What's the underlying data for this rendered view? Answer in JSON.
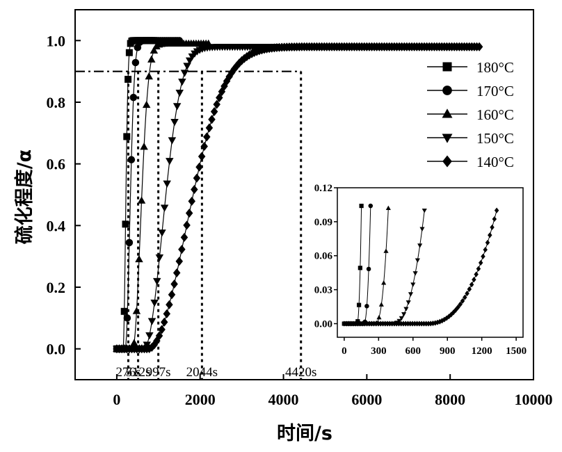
{
  "chart_data": [
    {
      "type": "line",
      "xlabel": "时间/s",
      "ylabel": "硫化程度/α",
      "xlim": [
        -1000,
        10000
      ],
      "ylim": [
        -0.1,
        1.1
      ],
      "xticks": [
        0,
        2000,
        4000,
        6000,
        8000,
        10000
      ],
      "xtick_labels": [
        "0",
        "2000",
        "4000",
        "6000",
        "8000",
        "10000"
      ],
      "yticks": [
        0.0,
        0.2,
        0.4,
        0.6,
        0.8,
        1.0
      ],
      "ytick_labels": [
        "0.0",
        "0.2",
        "0.4",
        "0.6",
        "0.8",
        "1.0"
      ],
      "legend_position": "upper-right",
      "reference_line": {
        "y": 0.9,
        "style": "dash-dot"
      },
      "annotations": [
        {
          "text": "276s",
          "x": 276
        },
        {
          "text": "512s",
          "x": 512
        },
        {
          "text": "997s",
          "x": 997
        },
        {
          "text": "2044s",
          "x": 2044
        },
        {
          "text": "4420s",
          "x": 4420
        }
      ],
      "series": [
        {
          "name": "180°C",
          "marker": "square",
          "k": 0.012,
          "t0": 150,
          "t_end": 900,
          "x": [
            0,
            150,
            200,
            276,
            400,
            600,
            900
          ],
          "y": [
            0.0,
            0.0,
            0.45,
            0.9,
            0.99,
            1.0,
            1.0
          ]
        },
        {
          "name": "170°C",
          "marker": "circle",
          "k": 0.0065,
          "t0": 200,
          "t_end": 1500,
          "x": [
            0,
            200,
            350,
            512,
            800,
            1200,
            1500
          ],
          "y": [
            0.0,
            0.0,
            0.62,
            0.9,
            0.99,
            1.0,
            1.0
          ]
        },
        {
          "name": "160°C",
          "marker": "triangle-up",
          "k": 0.0038,
          "t0": 380,
          "t_end": 2200,
          "x": [
            0,
            380,
            600,
            997,
            1500,
            2200
          ],
          "y": [
            0.0,
            0.0,
            0.57,
            0.9,
            0.98,
            0.99
          ]
        },
        {
          "name": "150°C",
          "marker": "triangle-down",
          "k": 0.0016,
          "t0": 650,
          "t_end": 3800,
          "x": [
            0,
            650,
            1000,
            1500,
            2044,
            3000,
            3800
          ],
          "y": [
            0.0,
            0.0,
            0.43,
            0.76,
            0.9,
            0.97,
            0.98
          ]
        },
        {
          "name": "140°C",
          "marker": "diamond",
          "k": 0.00078,
          "t0": 750,
          "t_end": 8700,
          "x": [
            0,
            750,
            1500,
            2044,
            3000,
            4420,
            6000,
            8700
          ],
          "y": [
            0.0,
            0.0,
            0.18,
            0.36,
            0.63,
            0.9,
            0.96,
            0.98
          ]
        }
      ]
    },
    {
      "type": "line",
      "title": "",
      "xlim": [
        -60,
        1560
      ],
      "ylim": [
        -0.012,
        0.12
      ],
      "xticks": [
        0,
        300,
        600,
        900,
        1200,
        1500
      ],
      "xtick_labels": [
        "0",
        "300",
        "600",
        "900",
        "1200",
        "1500"
      ],
      "yticks": [
        0.0,
        0.03,
        0.06,
        0.09,
        0.12
      ],
      "ytick_labels": [
        "0.00",
        "0.03",
        "0.06",
        "0.09",
        "0.12"
      ],
      "series": [
        {
          "name": "180°C",
          "marker": "square",
          "t0": 110,
          "t_end": 150,
          "x": [
            110,
            150
          ],
          "y": [
            0.0,
            0.104
          ]
        },
        {
          "name": "170°C",
          "marker": "circle",
          "t0": 170,
          "t_end": 230,
          "x": [
            170,
            230
          ],
          "y": [
            0.0,
            0.104
          ]
        },
        {
          "name": "160°C",
          "marker": "triangle-up",
          "t0": 270,
          "t_end": 385,
          "x": [
            270,
            385
          ],
          "y": [
            0.0,
            0.102
          ]
        },
        {
          "name": "150°C",
          "marker": "triangle-down",
          "t0": 420,
          "t_end": 700,
          "x": [
            420,
            700
          ],
          "y": [
            0.0,
            0.1
          ]
        },
        {
          "name": "140°C",
          "marker": "diamond",
          "t0": 720,
          "t_end": 1330,
          "x": [
            720,
            1330
          ],
          "y": [
            0.0,
            0.1
          ]
        }
      ]
    }
  ]
}
